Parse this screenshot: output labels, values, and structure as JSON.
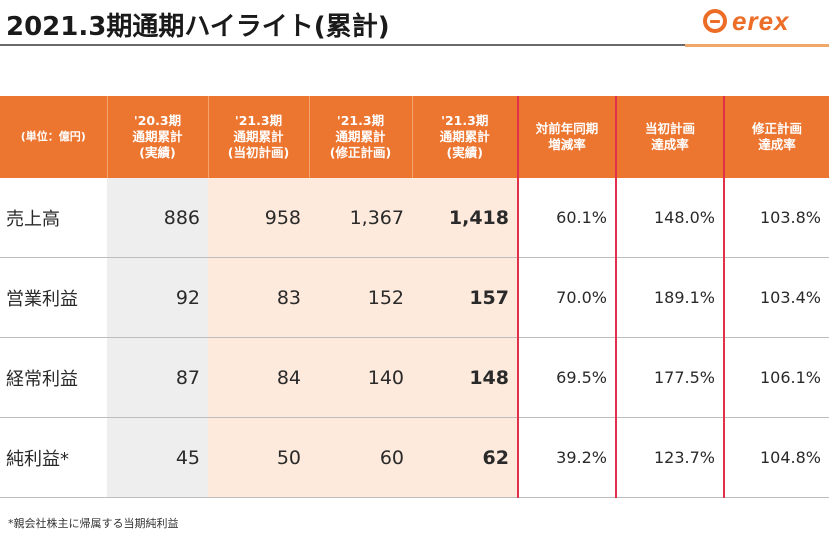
{
  "title": "2021.3期通期ハイライト(累計)",
  "logo": {
    "text": "erex",
    "color": "#ec6d27"
  },
  "colors": {
    "header": "#ec7530",
    "highlight": "#fdeadc",
    "gray": "#eeeeee",
    "red_border": "#e0304a"
  },
  "table": {
    "unit_label": "(単位：億円)",
    "columns": [
      {
        "l1": "'20.3期",
        "l2": "通期累計",
        "l3": "(実績)"
      },
      {
        "l1": "'21.3期",
        "l2": "通期累計",
        "l3": "(当初計画)"
      },
      {
        "l1": "'21.3期",
        "l2": "通期累計",
        "l3": "(修正計画)"
      },
      {
        "l1": "'21.3期",
        "l2": "通期累計",
        "l3": "(実績)"
      },
      {
        "l1": "対前年同期",
        "l2": "増減率"
      },
      {
        "l1": "当初計画",
        "l2": "達成率"
      },
      {
        "l1": "修正計画",
        "l2": "達成率"
      }
    ],
    "rows": [
      {
        "label": "売上高",
        "values": [
          "886",
          "958",
          "1,367",
          "1,418",
          "60.1%",
          "148.0%",
          "103.8%"
        ]
      },
      {
        "label": "営業利益",
        "values": [
          "92",
          "83",
          "152",
          "157",
          "70.0%",
          "189.1%",
          "103.4%"
        ]
      },
      {
        "label": "経常利益",
        "values": [
          "87",
          "84",
          "140",
          "148",
          "69.5%",
          "177.5%",
          "106.1%"
        ]
      },
      {
        "label": "純利益*",
        "values": [
          "45",
          "50",
          "60",
          "62",
          "39.2%",
          "123.7%",
          "104.8%"
        ]
      }
    ]
  },
  "footnote": "*親会社株主に帰属する当期純利益"
}
